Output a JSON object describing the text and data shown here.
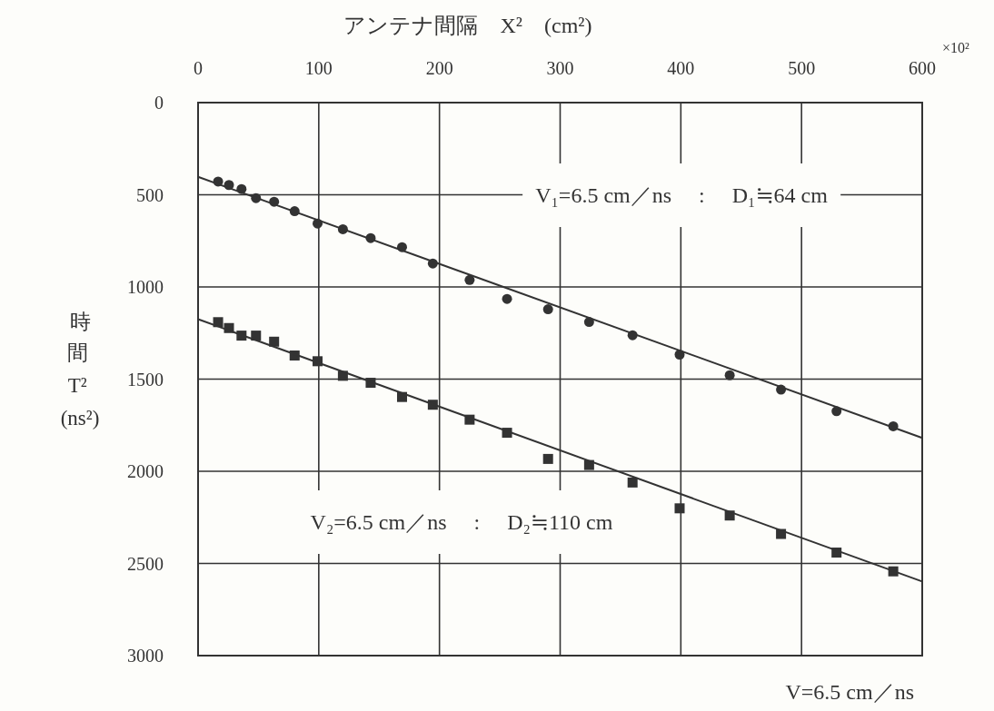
{
  "chart_data": {
    "type": "scatter",
    "xlabel": "アンテナ間隔　X²　(cm²)",
    "ylabel": "時間 T² (ns²)",
    "xlim": [
      0,
      600
    ],
    "xticks": [
      0,
      100,
      200,
      300,
      400,
      500,
      600
    ],
    "ylim": [
      3000,
      0
    ],
    "yticks": [
      0,
      500,
      1000,
      1500,
      2000,
      2500,
      3000
    ],
    "grid": true,
    "series": [
      {
        "type": "scatter",
        "marker": "circle",
        "color": "#333333",
        "x": [
          16.6,
          25.6,
          36,
          48,
          63,
          80,
          99,
          120,
          143,
          169,
          194.5,
          225,
          256,
          290,
          324,
          360,
          399,
          440.5,
          483,
          529,
          576
        ],
        "values": [
          428,
          447,
          469,
          518,
          538,
          589,
          656,
          687,
          735,
          784,
          873,
          962,
          1065,
          1121,
          1190,
          1262,
          1367,
          1479,
          1557,
          1674,
          1756
        ]
      },
      {
        "type": "scatter",
        "marker": "square",
        "color": "#333333",
        "x": [
          16.6,
          25.6,
          36,
          48,
          63,
          80,
          99,
          120,
          143,
          169,
          194.5,
          225,
          256,
          290,
          324,
          360,
          399,
          440.5,
          483,
          529,
          576
        ],
        "values": [
          1191,
          1223,
          1264,
          1264,
          1297,
          1372,
          1403,
          1482,
          1520,
          1597,
          1639,
          1720,
          1791,
          1933,
          1966,
          2061,
          2201,
          2240,
          2340,
          2441,
          2543
        ]
      },
      {
        "type": "line",
        "color": "#333333",
        "x": [
          0,
          600
        ],
        "values": [
          403,
          1819
        ]
      },
      {
        "type": "line",
        "color": "#333333",
        "x": [
          0,
          600
        ],
        "values": [
          1175,
          2598
        ]
      }
    ],
    "annotations": [
      "V₁=6.5 cm／ns　 :　 D₁≒64 cm",
      "V₂=6.5 cm／ns　 :　 D₂≒110 cm",
      "V=6.5 cm／ns",
      "×10²"
    ]
  }
}
